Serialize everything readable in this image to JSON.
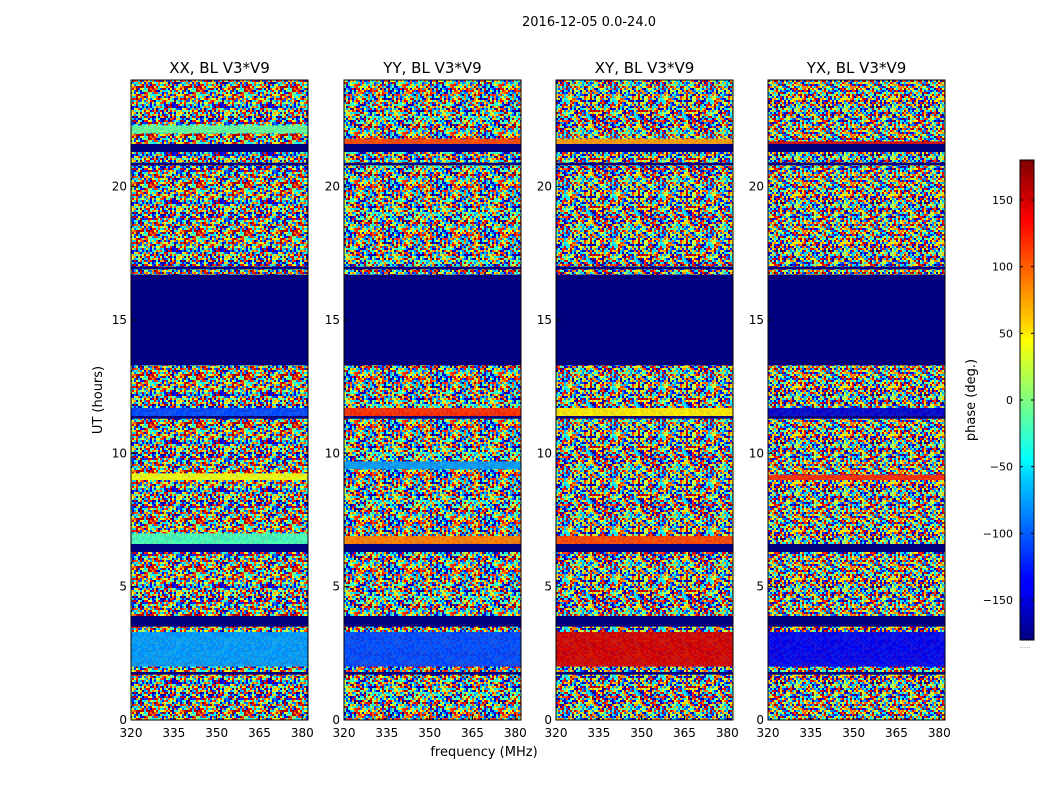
{
  "chart_data": {
    "type": "heatmap",
    "suptitle": "2016-12-05 0.0-24.0",
    "xlabel": "frequency (MHz)",
    "ylabel": "UT (hours)",
    "xlim": [
      320,
      382
    ],
    "ylim": [
      0,
      24
    ],
    "xticks": [
      320,
      335,
      350,
      365,
      380
    ],
    "yticks": [
      0,
      5,
      10,
      15,
      20
    ],
    "colormap": "jet",
    "colorbar": {
      "label": "phase (deg.)",
      "range": [
        -180,
        180
      ],
      "ticks": [
        -150,
        -100,
        -50,
        0,
        50,
        100,
        150
      ],
      "extra_label": "....."
    },
    "flagged_blocks_ut": [
      [
        13.3,
        16.7
      ],
      [
        3.5,
        3.9
      ],
      [
        6.3,
        6.6
      ],
      [
        21.3,
        21.6
      ],
      [
        11.3,
        11.4
      ],
      [
        20.8,
        20.9
      ],
      [
        16.9,
        17.0
      ],
      [
        1.7,
        1.8
      ]
    ],
    "panels": [
      {
        "title": "XX, BL V3*V9",
        "stripes": [
          {
            "ut": [
              11.3,
              11.7
            ],
            "phase": -110
          },
          {
            "ut": [
              9.0,
              9.25
            ],
            "phase": 40
          },
          {
            "ut": [
              2.0,
              3.3
            ],
            "phase": -80
          },
          {
            "ut": [
              6.6,
              7.0
            ],
            "phase": -20
          },
          {
            "ut": [
              22.0,
              22.3
            ],
            "phase": -10
          }
        ]
      },
      {
        "title": "YY, BL V3*V9",
        "stripes": [
          {
            "ut": [
              11.3,
              11.7
            ],
            "phase": 120
          },
          {
            "ut": [
              2.0,
              3.3
            ],
            "phase": -110
          },
          {
            "ut": [
              6.6,
              6.9
            ],
            "phase": 90
          },
          {
            "ut": [
              9.4,
              9.7
            ],
            "phase": -80
          },
          {
            "ut": [
              21.6,
              21.8
            ],
            "phase": 110
          }
        ]
      },
      {
        "title": "XY, BL V3*V9",
        "stripes": [
          {
            "ut": [
              11.3,
              11.7
            ],
            "phase": 50
          },
          {
            "ut": [
              2.0,
              3.3
            ],
            "phase": 150
          },
          {
            "ut": [
              6.6,
              6.9
            ],
            "phase": 110
          },
          {
            "ut": [
              21.6,
              21.8
            ],
            "phase": 80
          }
        ]
      },
      {
        "title": "YX, BL V3*V9",
        "stripes": [
          {
            "ut": [
              11.3,
              11.7
            ],
            "phase": -150
          },
          {
            "ut": [
              2.0,
              3.3
            ],
            "phase": -140
          },
          {
            "ut": [
              9.0,
              9.2
            ],
            "phase": 120
          },
          {
            "ut": [
              21.5,
              21.7
            ],
            "phase": 150
          }
        ]
      }
    ]
  }
}
